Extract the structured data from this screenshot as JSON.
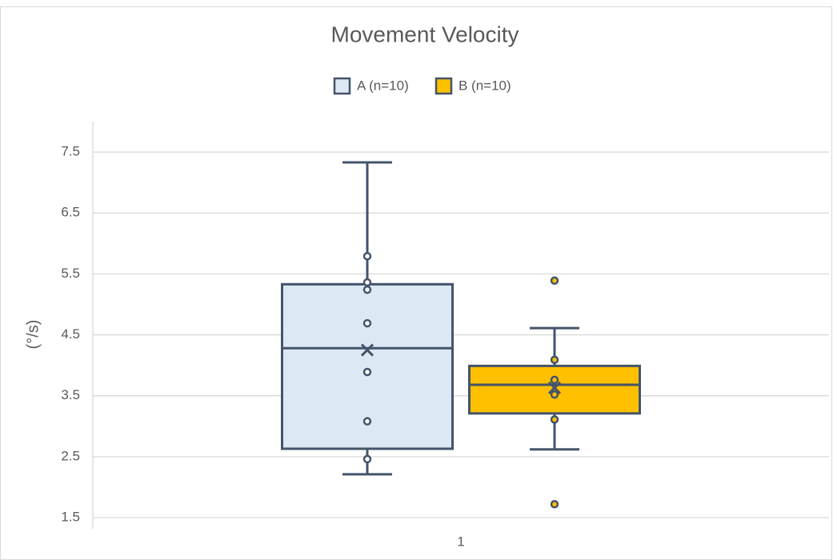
{
  "chart_data": {
    "type": "box",
    "title": "Movement Velocity",
    "y_label": "(°/s)",
    "categories": [
      "1"
    ],
    "ylim": [
      1.5,
      8
    ],
    "yticks": [
      1.5,
      2.5,
      3.5,
      4.5,
      5.5,
      6.5,
      7.5
    ],
    "grid": true,
    "line_color": "#44546a",
    "series": [
      {
        "name": "A (n=10)",
        "color": "#dde8f5",
        "min": 2.21,
        "q1": 2.63,
        "median": 4.28,
        "q3": 5.33,
        "max": 7.33,
        "mean": 4.25,
        "points": [
          5.79,
          5.36,
          5.24,
          4.69,
          3.89,
          3.08,
          2.46
        ]
      },
      {
        "name": "B (n=10)",
        "color": "#ffc000",
        "min": 2.62,
        "q1": 3.21,
        "median": 3.68,
        "q3": 3.99,
        "max": 4.61,
        "mean": 3.63,
        "points": [
          5.39,
          4.09,
          3.76,
          3.52,
          3.11,
          1.72
        ]
      }
    ]
  }
}
